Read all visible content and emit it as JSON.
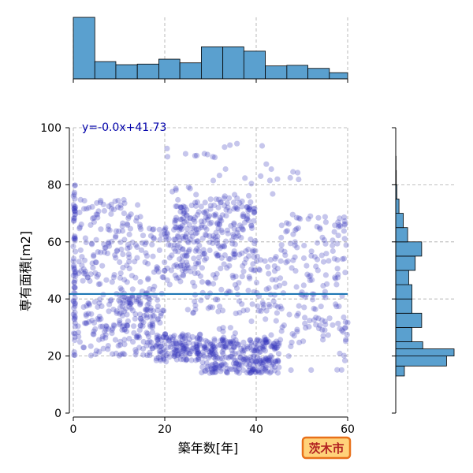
{
  "chart_data": {
    "type": "scatter",
    "xlabel": "築年数[年]",
    "ylabel": "専有面積[m2]",
    "xlim": [
      -1,
      60
    ],
    "ylim": [
      0,
      100
    ],
    "xticks": [
      "0",
      "20",
      "40",
      "60"
    ],
    "yticks": [
      "0",
      "20",
      "40",
      "60",
      "80",
      "100"
    ],
    "grid": true,
    "annotation": "y=-0.0x+41.73",
    "regression": {
      "slope": -0.0,
      "intercept": 41.73
    },
    "badge": "茨木市",
    "colors": {
      "points": "#3333bb",
      "regression": "#1f77b4",
      "hist": "#5aa0cf",
      "badge_bg": "#ffd27a",
      "badge_border": "#e8701a",
      "badge_text": "#b22222",
      "annotation": "#0000aa"
    },
    "marginal_x": {
      "bin_edges": [
        0,
        4.7,
        9.3,
        14,
        18.7,
        23.3,
        28,
        32.7,
        37.3,
        42,
        46.7,
        51.3,
        56,
        60
      ],
      "counts": [
        100,
        28,
        23,
        24,
        32,
        26,
        52,
        52,
        45,
        21,
        22,
        17,
        10
      ]
    },
    "marginal_y": {
      "bin_edges": [
        13,
        16.5,
        20,
        22.5,
        25,
        30,
        35,
        40,
        45,
        50,
        55,
        60,
        65,
        70,
        75,
        80,
        85,
        90
      ],
      "counts": [
        8,
        47,
        54,
        25,
        15,
        24,
        15,
        15,
        12,
        18,
        24,
        11,
        7,
        3,
        1,
        0.5,
        0.3
      ]
    },
    "points": {
      "clusters": [
        {
          "x": [
            0,
            0.5
          ],
          "y": [
            20,
            80
          ],
          "n": 70
        },
        {
          "x": [
            1,
            15
          ],
          "y": [
            45,
            75
          ],
          "n": 140
        },
        {
          "x": [
            1,
            18
          ],
          "y": [
            20,
            42
          ],
          "n": 160
        },
        {
          "x": [
            10,
            20
          ],
          "y": [
            30,
            45
          ],
          "n": 60
        },
        {
          "x": [
            18,
            28
          ],
          "y": [
            18,
            28
          ],
          "n": 140
        },
        {
          "x": [
            28,
            45
          ],
          "y": [
            14,
            26
          ],
          "n": 260
        },
        {
          "x": [
            22,
            40
          ],
          "y": [
            55,
            75
          ],
          "n": 220
        },
        {
          "x": [
            25,
            45
          ],
          "y": [
            35,
            55
          ],
          "n": 120
        },
        {
          "x": [
            15,
            25
          ],
          "y": [
            45,
            65
          ],
          "n": 80
        },
        {
          "x": [
            45,
            60
          ],
          "y": [
            25,
            70
          ],
          "n": 150
        },
        {
          "x": [
            30,
            60
          ],
          "y": [
            15,
            35
          ],
          "n": 60
        },
        {
          "x": [
            15,
            50
          ],
          "y": [
            75,
            95
          ],
          "n": 40
        }
      ]
    }
  }
}
